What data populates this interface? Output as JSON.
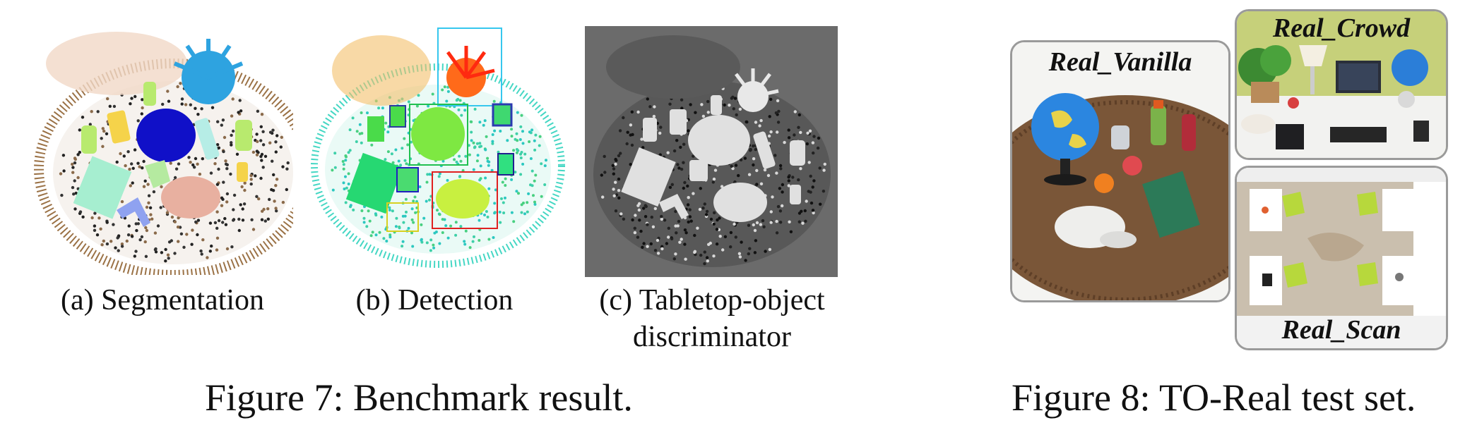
{
  "figure7": {
    "panels": [
      {
        "caption": "(a) Segmentation"
      },
      {
        "caption": "(b) Detection"
      },
      {
        "caption_line1": "(c) Tabletop-object",
        "caption_line2": "discriminator"
      }
    ],
    "caption": "Figure 7: Benchmark result."
  },
  "figure8": {
    "photos": [
      {
        "title": "Real_Vanilla"
      },
      {
        "title": "Real_Crowd"
      },
      {
        "title": "Real_Scan"
      }
    ],
    "caption": "Figure 8: TO-Real test set."
  },
  "colors": {
    "discriminator_bg": "#6b6b6b",
    "box_border": "#9a9a9a",
    "table_brown": "#7a5638"
  }
}
